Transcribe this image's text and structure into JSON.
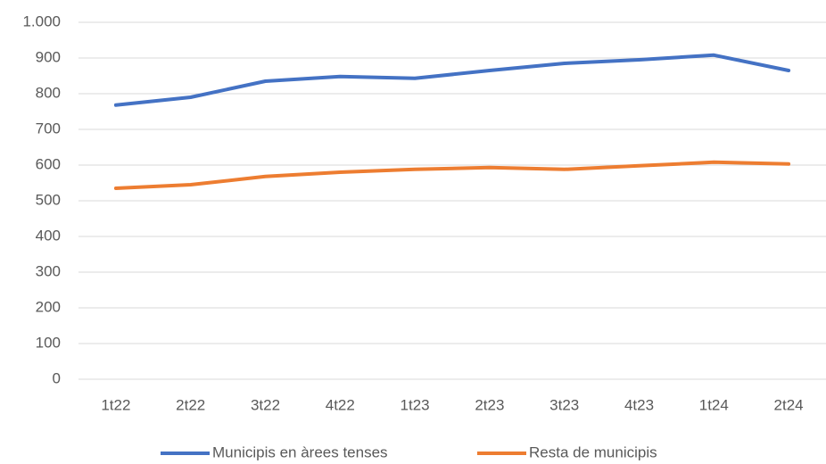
{
  "chart_data": {
    "type": "line",
    "categories": [
      "1t22",
      "2t22",
      "3t22",
      "4t22",
      "1t23",
      "2t23",
      "3t23",
      "4t23",
      "1t24",
      "2t24"
    ],
    "series": [
      {
        "name": "Municipis en àrees tenses",
        "color": "#4472c4",
        "values": [
          768,
          790,
          835,
          848,
          843,
          865,
          885,
          895,
          908,
          865
        ]
      },
      {
        "name": "Resta de municipis",
        "color": "#ed7d31",
        "values": [
          535,
          545,
          568,
          580,
          588,
          593,
          588,
          598,
          608,
          603
        ]
      }
    ],
    "ylim": [
      0,
      1000
    ],
    "yticks": [
      0,
      100,
      200,
      300,
      400,
      500,
      600,
      700,
      800,
      900,
      {
        "value": 1000,
        "label": "1.000"
      }
    ],
    "grid": true,
    "legend": "bottom"
  }
}
